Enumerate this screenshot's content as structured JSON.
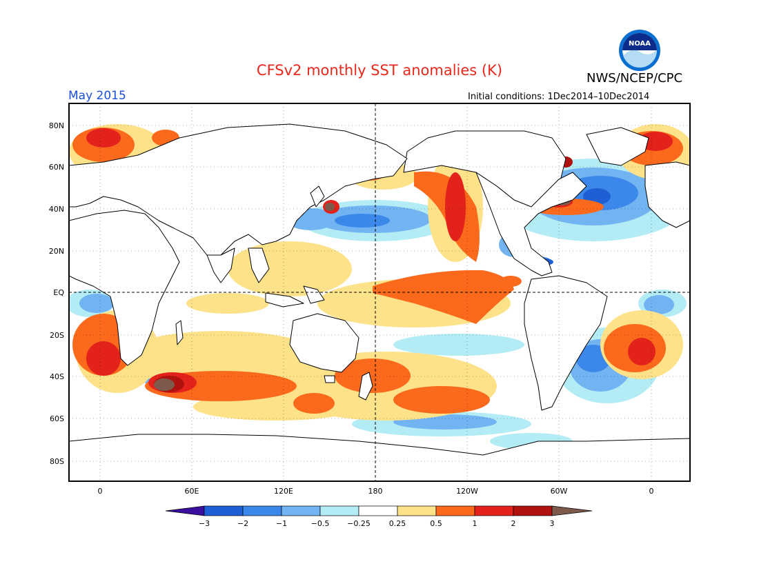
{
  "header": {
    "title": "CFSv2 monthly SST anomalies (K)",
    "agency": "NWS/NCEP/CPC",
    "logo_text": "NOAA",
    "month": "May 2015",
    "initial_conditions": "Initial conditions: 1Dec2014–10Dec2014"
  },
  "map": {
    "lat_labels": [
      "80N",
      "60N",
      "40N",
      "20N",
      "EQ",
      "20S",
      "40S",
      "60S",
      "80S"
    ],
    "lon_labels": [
      "0",
      "60E",
      "120E",
      "180",
      "120W",
      "60W",
      "0"
    ]
  },
  "colorbar": {
    "labels": [
      "−3",
      "−2",
      "−1",
      "−0.5",
      "−0.25",
      "0.25",
      "0.5",
      "1",
      "2",
      "3"
    ],
    "colors": [
      "#3a0fa0",
      "#1f5fd6",
      "#3c88ea",
      "#72b4f2",
      "#b4ecf6",
      "#ffffff",
      "#fde28a",
      "#fb6a1c",
      "#e3231b",
      "#b0120f",
      "#7d5a4c"
    ]
  },
  "colors": {
    "land": "#ffffff",
    "coast": "#000000",
    "title": "#e8281c",
    "month": "#1a4fd6"
  }
}
